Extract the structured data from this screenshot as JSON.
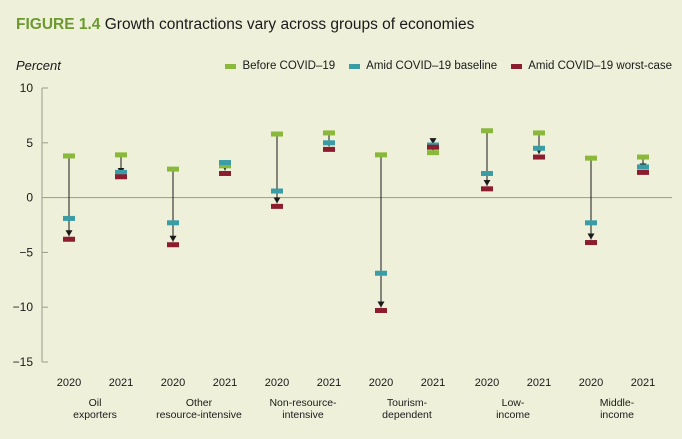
{
  "figure_label": "FIGURE 1.4",
  "figure_title": "Growth contractions vary across groups of economies",
  "chart_data": {
    "type": "dot-range",
    "title": "Growth contractions vary across groups of economies",
    "ylabel": "Percent",
    "ylim": [
      -15,
      10
    ],
    "yticks": [
      10,
      5,
      0,
      -5,
      -10,
      -15
    ],
    "yticklabels": [
      "10",
      "5",
      "0",
      "−5",
      "−10",
      "−15"
    ],
    "grid": false,
    "legend_position": "top-right",
    "series": [
      {
        "name": "Before COVID–19",
        "color": "#8ab83a"
      },
      {
        "name": "Amid COVID–19 baseline",
        "color": "#3a9da6"
      },
      {
        "name": "Amid COVID–19 worst-case",
        "color": "#8c1d2f"
      }
    ],
    "groups": [
      {
        "label_lines": [
          "Oil",
          "exporters"
        ],
        "points": [
          {
            "year": "2020",
            "before": 3.8,
            "baseline": -1.9,
            "worst": -3.8
          },
          {
            "year": "2021",
            "before": 3.9,
            "baseline": 2.3,
            "worst": 1.9
          }
        ]
      },
      {
        "label_lines": [
          "Other",
          "resource-intensive"
        ],
        "points": [
          {
            "year": "2020",
            "before": 2.6,
            "baseline": -2.3,
            "worst": -4.3
          },
          {
            "year": "2021",
            "before": 2.9,
            "baseline": 3.2,
            "worst": 2.2
          }
        ]
      },
      {
        "label_lines": [
          "Non-resource-",
          "intensive"
        ],
        "points": [
          {
            "year": "2020",
            "before": 5.8,
            "baseline": 0.6,
            "worst": -0.8
          },
          {
            "year": "2021",
            "before": 5.9,
            "baseline": 5.0,
            "worst": 4.4
          }
        ]
      },
      {
        "label_lines": [
          "Tourism-",
          "dependent"
        ],
        "points": [
          {
            "year": "2020",
            "before": 3.9,
            "baseline": -6.9,
            "worst": -10.3
          },
          {
            "year": "2021",
            "before": 4.1,
            "baseline": 4.8,
            "worst": 4.6
          }
        ]
      },
      {
        "label_lines": [
          "Low-",
          "income"
        ],
        "points": [
          {
            "year": "2020",
            "before": 6.1,
            "baseline": 2.2,
            "worst": 0.8
          },
          {
            "year": "2021",
            "before": 5.9,
            "baseline": 4.5,
            "worst": 3.7
          }
        ]
      },
      {
        "label_lines": [
          "Middle-",
          "income"
        ],
        "points": [
          {
            "year": "2020",
            "before": 3.6,
            "baseline": -2.3,
            "worst": -4.1
          },
          {
            "year": "2021",
            "before": 3.7,
            "baseline": 2.8,
            "worst": 2.3
          }
        ]
      }
    ]
  }
}
